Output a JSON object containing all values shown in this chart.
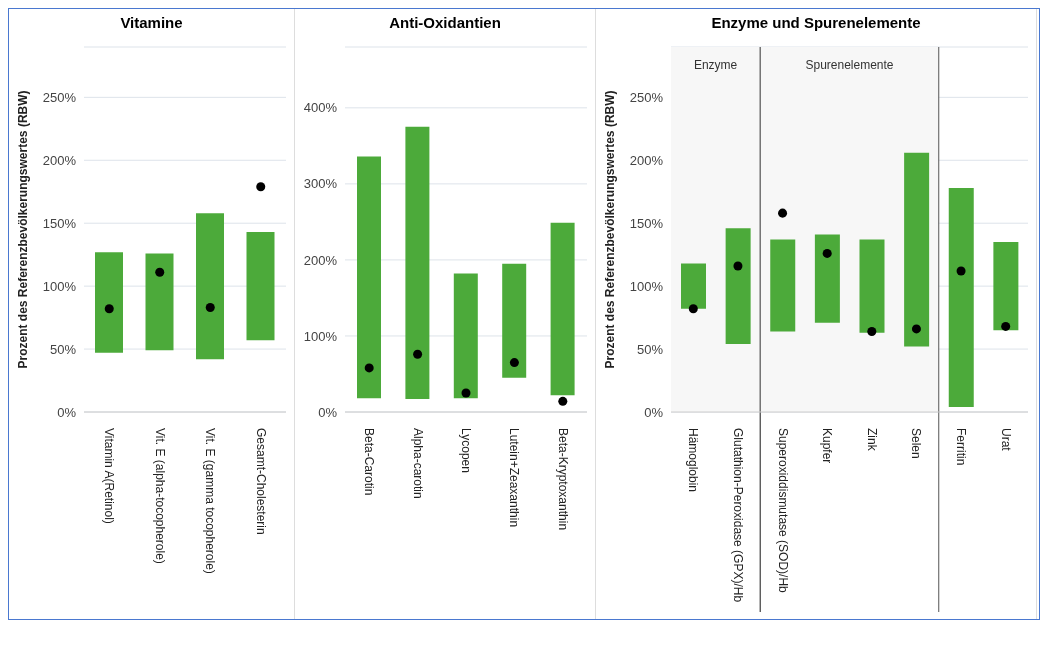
{
  "chart_data": [
    {
      "type": "bar",
      "title": "Vitamine",
      "ylabel": "Prozent des Referenzbevölkerungswertes (RBW)",
      "categories": [
        "Vitamin A(Retinol)",
        "Vit. E (alpha-tocopherole)",
        "Vit. E (gamma tocopherole)",
        "Gesamt-Cholesterin"
      ],
      "series": [
        {
          "color": "#4caa3a",
          "base": [
            47,
            49,
            42,
            57
          ],
          "values": [
            80,
            77,
            116,
            86
          ]
        },
        {
          "type": "scatter",
          "color": "#000000",
          "x": [
            "Vitamin A(Retinol)",
            "Vit. E (alpha-tocopherole)",
            "Vit. E (gamma tocopherole)",
            "Gesamt-Cholesterin"
          ],
          "values": [
            82,
            111,
            83,
            179
          ]
        }
      ],
      "ylim": [
        0,
        290
      ],
      "yticks": [
        {
          "value": 0,
          "label": "0%"
        },
        {
          "value": 50,
          "label": "50%"
        },
        {
          "value": 100,
          "label": "100%"
        },
        {
          "value": 150,
          "label": "150%"
        },
        {
          "value": 200,
          "label": "200%"
        },
        {
          "value": 250,
          "label": "250%"
        }
      ],
      "grid": "y",
      "marker": "circle"
    },
    {
      "type": "bar",
      "title": "Anti-Oxidantien",
      "categories": [
        "Beta-Carotin",
        "Alpha-carotin",
        "Lycopen",
        "Lutein+Zeaxanthin",
        "Beta-Kryptoxanthin"
      ],
      "series": [
        {
          "color": "#4caa3a",
          "base": [
            18,
            17,
            18,
            45,
            22
          ],
          "values": [
            318,
            358,
            164,
            150,
            227
          ]
        },
        {
          "type": "scatter",
          "color": "#000000",
          "x": [
            "Beta-Carotin",
            "Alpha-carotin",
            "Lycopen",
            "Lutein+Zeaxanthin",
            "Beta-Kryptoxanthin"
          ],
          "values": [
            58,
            76,
            25,
            65,
            14
          ]
        }
      ],
      "ylim": [
        0,
        480
      ],
      "yticks": [
        {
          "value": 0,
          "label": "0%"
        },
        {
          "value": 100,
          "label": "100%"
        },
        {
          "value": 200,
          "label": "200%"
        },
        {
          "value": 300,
          "label": "300%"
        },
        {
          "value": 400,
          "label": "400%"
        }
      ],
      "grid": "y",
      "marker": "circle"
    },
    {
      "type": "bar",
      "title": "Enzyme und Spurenelemente",
      "ylabel": "Prozent des Referenzbevölkerungswertes (RBW)",
      "categories": [
        "Hämoglobin",
        "Glutathion-Peroxidase (GPX)/Hb",
        "Superoxiddismutase (SOD)/Hb",
        "Kupfer",
        "Zink",
        "Selen",
        "Ferritin",
        "Urat"
      ],
      "series": [
        {
          "color": "#4caa3a",
          "base": [
            82,
            54,
            64,
            71,
            63,
            52,
            4,
            65
          ],
          "values": [
            36,
            92,
            73,
            70,
            74,
            154,
            174,
            70
          ]
        },
        {
          "type": "scatter",
          "color": "#000000",
          "x": [
            "Hämoglobin",
            "Glutathion-Peroxidase (GPX)/Hb",
            "Superoxiddismutase (SOD)/Hb",
            "Kupfer",
            "Zink",
            "Selen",
            "Ferritin",
            "Urat"
          ],
          "values": [
            82,
            116,
            158,
            126,
            64,
            66,
            112,
            68
          ]
        }
      ],
      "bands": [
        {
          "axis": "x",
          "from": "Hämoglobin",
          "to": "Glutathion-Peroxidase (GPX)/Hb",
          "label": "Enzyme",
          "color": "#f7f7f7"
        },
        {
          "axis": "x",
          "from": "Superoxiddismutase (SOD)/Hb",
          "to": "Selen",
          "label": "Spurenelemente",
          "color": "#f7f7f7"
        }
      ],
      "ylim": [
        0,
        290
      ],
      "yticks": [
        {
          "value": 0,
          "label": "0%"
        },
        {
          "value": 50,
          "label": "50%"
        },
        {
          "value": 100,
          "label": "100%"
        },
        {
          "value": 150,
          "label": "150%"
        },
        {
          "value": 200,
          "label": "200%"
        },
        {
          "value": 250,
          "label": "250%"
        }
      ],
      "grid": "y",
      "marker": "circle"
    }
  ]
}
